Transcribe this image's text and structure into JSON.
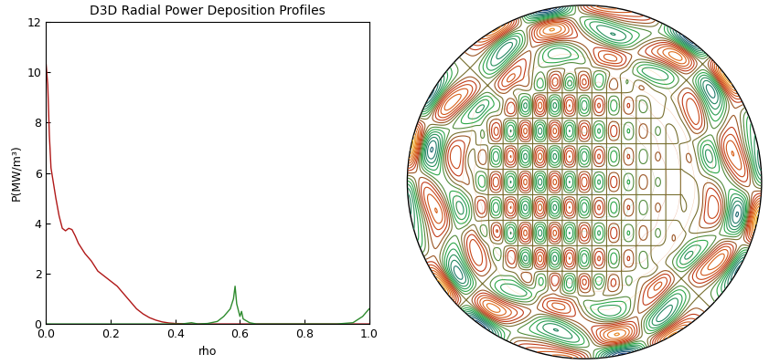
{
  "chart_data": [
    {
      "type": "line",
      "title": "D3D Radial Power Deposition Profiles",
      "x_label": "rho",
      "y_label": "P(MW/m³)",
      "xlim": [
        0,
        1
      ],
      "ylim": [
        0,
        12
      ],
      "xticks": [
        {
          "value": 0,
          "label": "0.0"
        },
        {
          "value": 0.2,
          "label": "0.2"
        },
        {
          "value": 0.4,
          "label": "0.4"
        },
        {
          "value": 0.6,
          "label": "0.6"
        },
        {
          "value": 0.8,
          "label": "0.8"
        },
        {
          "value": 1,
          "label": "1.0"
        }
      ],
      "yticks": [
        0,
        2,
        4,
        6,
        8,
        10,
        12
      ],
      "series": [
        {
          "color": "#b01818",
          "x": [
            0,
            0.005,
            0.01,
            0.015,
            0.02,
            0.03,
            0.04,
            0.05,
            0.06,
            0.07,
            0.08,
            0.09,
            0.1,
            0.12,
            0.14,
            0.16,
            0.18,
            0.2,
            0.22,
            0.24,
            0.26,
            0.28,
            0.3,
            0.32,
            0.34,
            0.36,
            0.38,
            0.4,
            0.45,
            0.5,
            0.6,
            0.8,
            1.0
          ],
          "values": [
            10.3,
            9.5,
            7.5,
            6.2,
            5.8,
            5.0,
            4.3,
            3.8,
            3.7,
            3.8,
            3.75,
            3.5,
            3.2,
            2.8,
            2.5,
            2.1,
            1.9,
            1.7,
            1.5,
            1.2,
            0.9,
            0.6,
            0.4,
            0.25,
            0.15,
            0.08,
            0.04,
            0.02,
            0.0,
            0.0,
            0.0,
            0.0,
            0.0
          ]
        },
        {
          "color": "#2e8b2e",
          "x": [
            0.0,
            0.42,
            0.45,
            0.47,
            0.5,
            0.53,
            0.55,
            0.57,
            0.58,
            0.585,
            0.59,
            0.6,
            0.605,
            0.61,
            0.63,
            0.65,
            0.9,
            0.95,
            0.98,
            1.0
          ],
          "values": [
            0.0,
            0.0,
            0.05,
            0.0,
            0.02,
            0.1,
            0.3,
            0.6,
            1.0,
            1.5,
            0.8,
            0.3,
            0.5,
            0.2,
            0.05,
            0.0,
            0.0,
            0.05,
            0.3,
            0.6
          ]
        }
      ]
    },
    {
      "type": "contour",
      "tick_labels": false
    }
  ]
}
